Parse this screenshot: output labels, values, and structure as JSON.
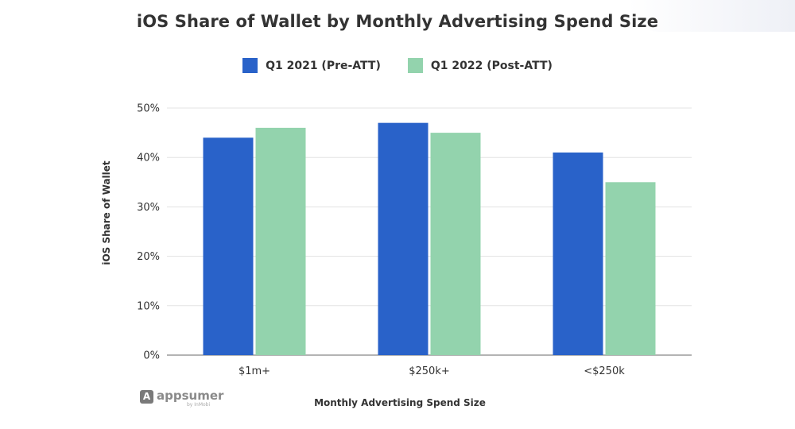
{
  "chart_data": {
    "type": "bar",
    "title": "iOS Share of Wallet by Monthly Advertising Spend Size",
    "xlabel": "Monthly Advertising Spend Size",
    "ylabel": "iOS Share of Wallet",
    "categories": [
      "$1m+",
      "$250k+",
      "<$250k"
    ],
    "series": [
      {
        "name": "Q1 2021 (Pre-ATT)",
        "color": "#2962c9",
        "values": [
          44,
          47,
          41
        ]
      },
      {
        "name": "Q1 2022 (Post-ATT)",
        "color": "#93d3ad",
        "values": [
          46,
          45,
          35
        ]
      }
    ],
    "ylim": [
      0,
      50
    ],
    "yticks": [
      0,
      10,
      20,
      30,
      40,
      50
    ],
    "ytick_labels": [
      "0%",
      "10%",
      "20%",
      "30%",
      "40%",
      "50%"
    ],
    "grid": true,
    "legend_position": "top"
  },
  "watermark": {
    "logo_letter": "A",
    "brand": "appsumer",
    "byline": "by InMobi"
  }
}
